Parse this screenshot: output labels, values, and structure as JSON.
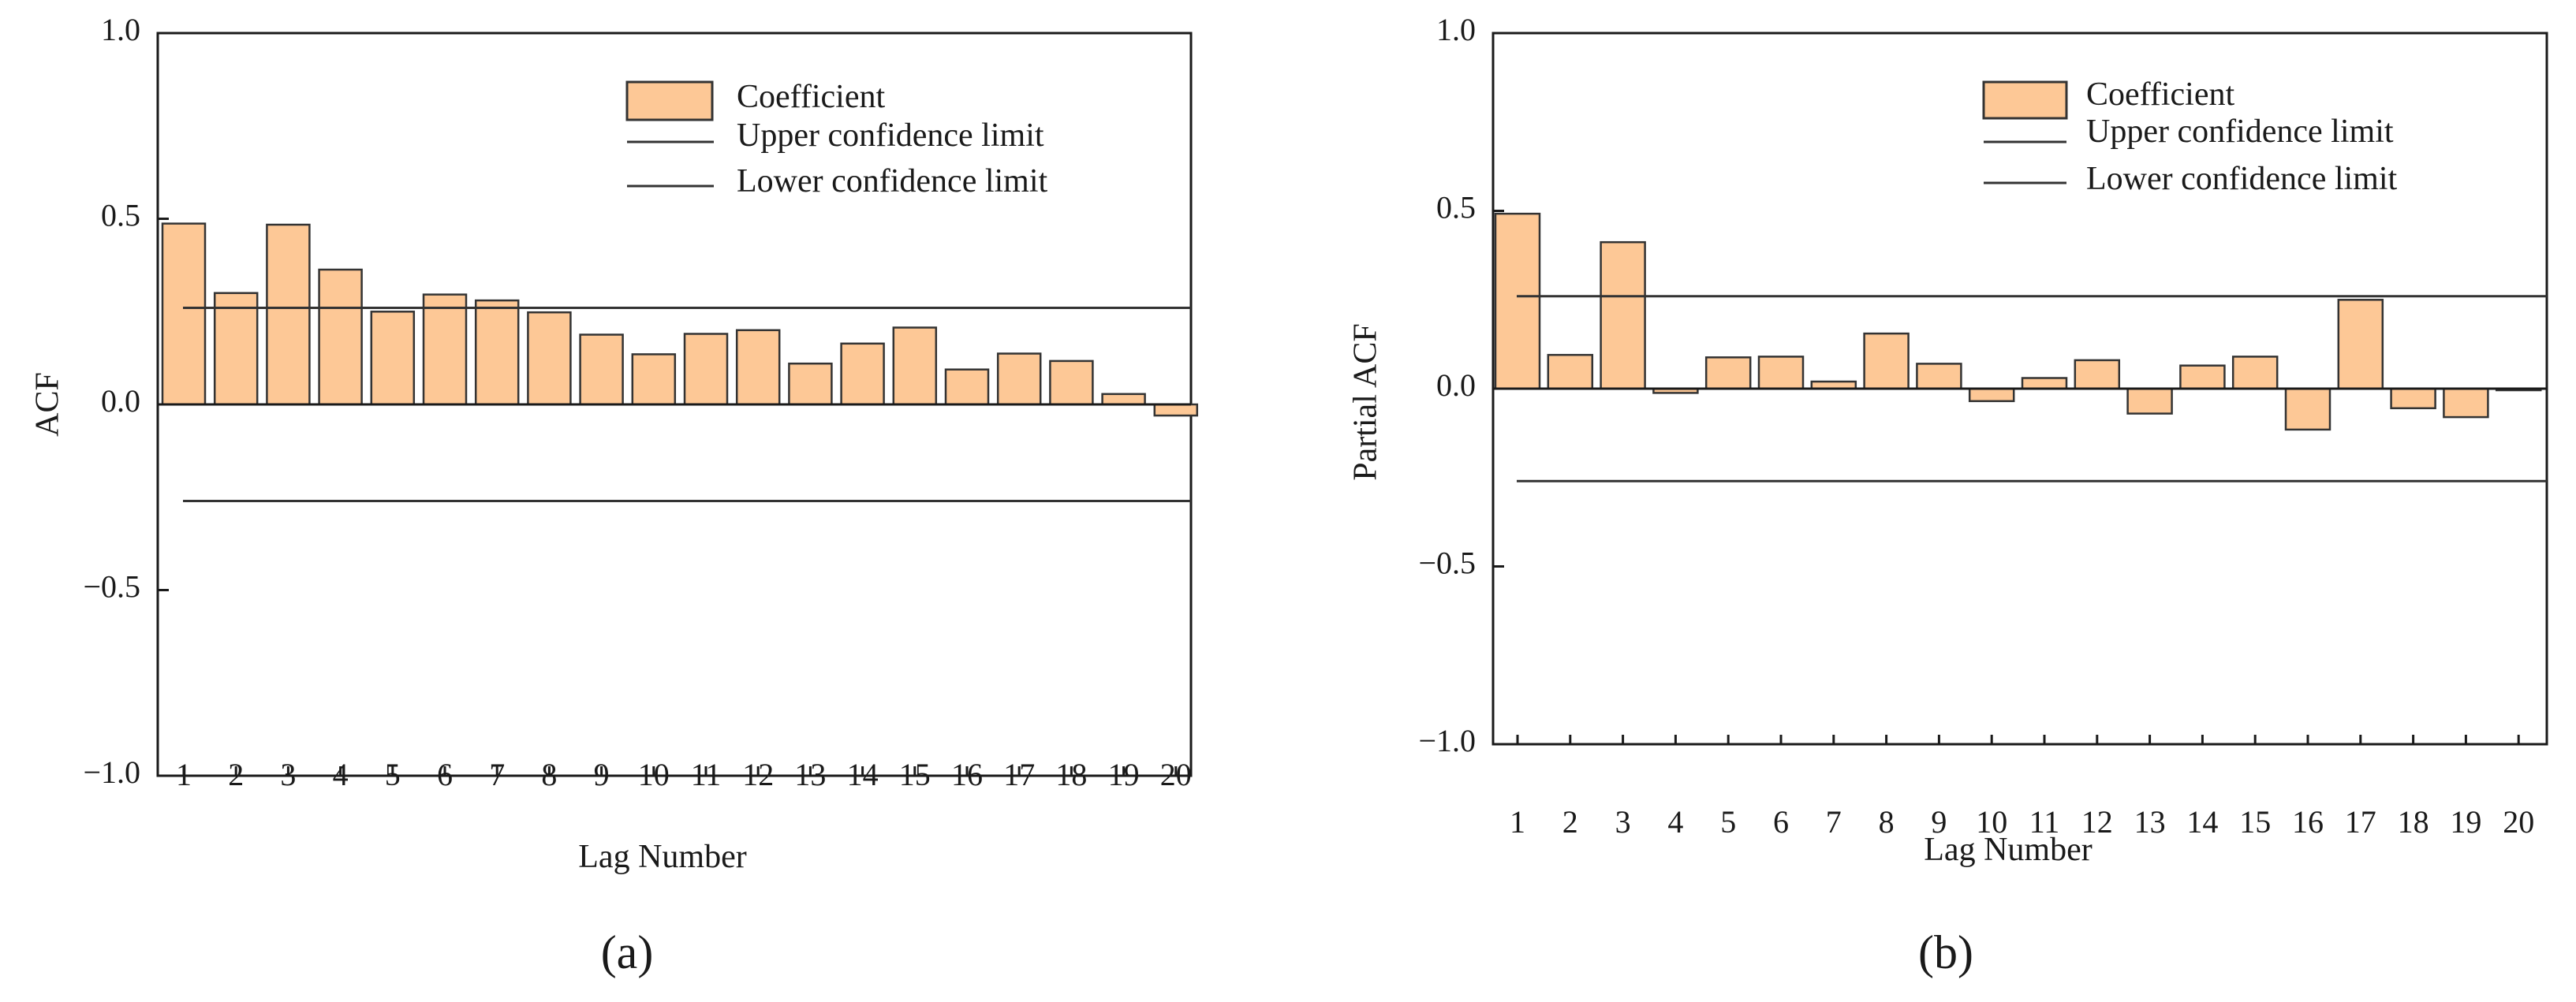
{
  "chart_data": [
    {
      "type": "bar",
      "panel_label": "(a)",
      "xlabel": "Lag Number",
      "ylabel": "ACF",
      "ylim": [
        -1.0,
        1.0
      ],
      "yticks": [
        "1.0",
        "0.5",
        "0.0",
        "−0.5",
        "−1.0"
      ],
      "ytick_values": [
        1.0,
        0.5,
        0.0,
        -0.5,
        -1.0
      ],
      "categories": [
        "1",
        "2",
        "3",
        "4",
        "5",
        "6",
        "7",
        "8",
        "9",
        "10",
        "11",
        "12",
        "13",
        "14",
        "15",
        "16",
        "17",
        "18",
        "19",
        "20"
      ],
      "values": [
        0.487,
        0.3,
        0.484,
        0.363,
        0.25,
        0.296,
        0.28,
        0.248,
        0.188,
        0.135,
        0.19,
        0.2,
        0.11,
        0.164,
        0.207,
        0.094,
        0.137,
        0.117,
        0.028,
        -0.03
      ],
      "upper_confidence_limit": 0.26,
      "lower_confidence_limit": -0.26,
      "legend": [
        "Coefficient",
        "Upper confidence limit",
        "Lower confidence limit"
      ],
      "legend_position": "top-right",
      "bar_color": "#fdc896",
      "bar_edge_color": "#333333"
    },
    {
      "type": "bar",
      "panel_label": "(b)",
      "xlabel": "Lag Number",
      "ylabel": "Partial ACF",
      "ylim": [
        -1.0,
        1.0
      ],
      "yticks": [
        "1.0",
        "0.5",
        "0.0",
        "−0.5",
        "−1.0"
      ],
      "ytick_values": [
        1.0,
        0.5,
        0.0,
        -0.5,
        -1.0
      ],
      "categories": [
        "1",
        "2",
        "3",
        "4",
        "5",
        "6",
        "7",
        "8",
        "9",
        "10",
        "11",
        "12",
        "13",
        "14",
        "15",
        "16",
        "17",
        "18",
        "19",
        "20"
      ],
      "values": [
        0.492,
        0.095,
        0.412,
        -0.012,
        0.088,
        0.09,
        0.02,
        0.155,
        0.07,
        -0.035,
        0.03,
        0.08,
        -0.07,
        0.065,
        0.09,
        -0.115,
        0.25,
        -0.055,
        -0.08,
        0.0
      ],
      "upper_confidence_limit": 0.26,
      "lower_confidence_limit": -0.26,
      "legend": [
        "Coefficient",
        "Upper confidence limit",
        "Lower confidence limit"
      ],
      "legend_position": "top-right",
      "bar_color": "#fdc896",
      "bar_edge_color": "#333333"
    }
  ]
}
